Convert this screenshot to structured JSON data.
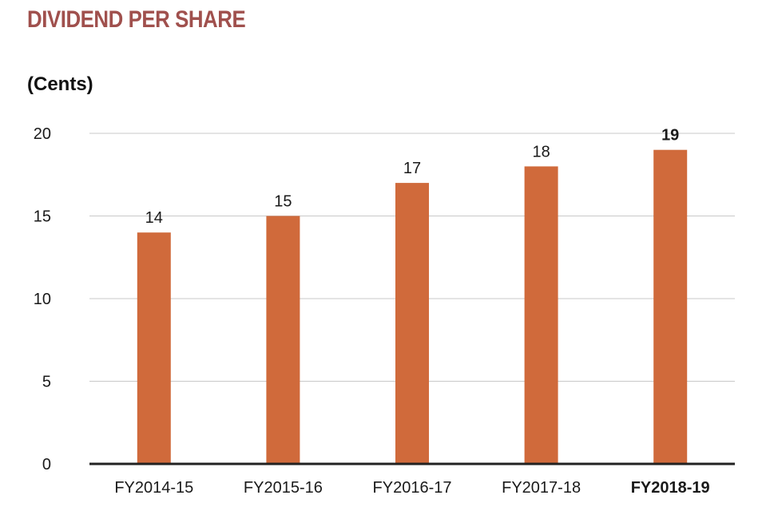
{
  "chart_data": {
    "type": "bar",
    "title": "DIVIDEND PER SHARE",
    "ylabel": "(Cents)",
    "xlabel": "",
    "categories": [
      "FY2014-15",
      "FY2015-16",
      "FY2016-17",
      "FY2017-18",
      "FY2018-19"
    ],
    "values": [
      14,
      15,
      17,
      18,
      19
    ],
    "data_labels": [
      "14",
      "15",
      "17",
      "18",
      "19"
    ],
    "highlighted_category": "FY2018-19",
    "ylim": [
      0,
      20
    ],
    "yticks": [
      0,
      5,
      10,
      15,
      20
    ],
    "grid": true,
    "legend": "none",
    "colors": {
      "bar": "#d06a3b",
      "title": "#a0504d",
      "grid": "#c8c8c8",
      "baseline": "#222222",
      "text": "#1a1a1a"
    }
  }
}
